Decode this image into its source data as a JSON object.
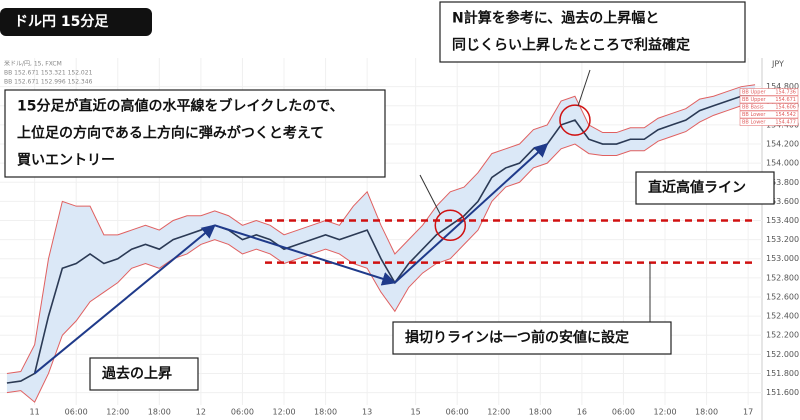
{
  "header": {
    "title": "ドル円 15分足"
  },
  "chart_data": {
    "type": "line",
    "currency": "JPY",
    "info_lines": [
      "米ドル/円, 15, FXCM",
      "BB 152.671 153.321 152.021",
      "BB 152.671 152.996 152.346"
    ],
    "x": [
      -4,
      -2,
      0,
      2,
      4,
      6,
      8,
      10,
      12,
      14,
      16,
      18,
      20,
      22,
      24,
      26,
      28,
      30,
      32,
      34,
      36,
      38,
      40,
      42,
      44,
      46,
      48,
      50,
      52,
      54,
      56,
      58,
      60,
      62,
      64,
      66,
      68,
      70,
      72,
      74,
      76,
      78,
      80,
      82,
      84,
      86,
      88,
      90,
      92,
      94,
      96,
      98,
      100,
      102,
      104
    ],
    "series": [
      {
        "name": "BB Upper",
        "color": "#e06060",
        "values": [
          151.8,
          151.82,
          152.1,
          153.0,
          153.6,
          153.55,
          153.55,
          153.25,
          153.25,
          153.3,
          153.35,
          153.3,
          153.4,
          153.45,
          153.45,
          153.5,
          153.45,
          153.35,
          153.4,
          153.35,
          153.25,
          153.3,
          153.35,
          153.4,
          153.35,
          153.55,
          153.7,
          153.35,
          153.05,
          153.2,
          153.35,
          153.55,
          153.7,
          153.75,
          153.9,
          154.1,
          154.15,
          154.2,
          154.35,
          154.4,
          154.65,
          154.7,
          154.4,
          154.32,
          154.32,
          154.37,
          154.37,
          154.47,
          154.52,
          154.57,
          154.67,
          154.7,
          154.75,
          154.8,
          154.82
        ]
      },
      {
        "name": "BB Lower",
        "color": "#e06060",
        "values": [
          151.6,
          151.62,
          151.5,
          151.8,
          152.2,
          152.35,
          152.55,
          152.65,
          152.75,
          152.9,
          152.95,
          152.9,
          153.0,
          153.05,
          153.15,
          153.2,
          153.15,
          153.05,
          153.1,
          153.05,
          152.95,
          153.0,
          153.05,
          153.1,
          153.05,
          152.95,
          152.9,
          152.65,
          152.45,
          152.7,
          152.85,
          152.95,
          153.0,
          153.15,
          153.3,
          153.6,
          153.75,
          153.8,
          153.95,
          154.0,
          154.15,
          154.2,
          154.1,
          154.08,
          154.08,
          154.13,
          154.13,
          154.23,
          154.28,
          154.33,
          154.43,
          154.5,
          154.55,
          154.6,
          154.62
        ]
      },
      {
        "name": "Price",
        "color": "#2b3a55",
        "values": [
          151.7,
          151.72,
          151.8,
          152.4,
          152.9,
          152.95,
          153.05,
          152.95,
          153.0,
          153.1,
          153.15,
          153.1,
          153.2,
          153.25,
          153.3,
          153.35,
          153.3,
          153.2,
          153.25,
          153.2,
          153.1,
          153.15,
          153.2,
          153.25,
          153.2,
          153.25,
          153.3,
          153.0,
          152.75,
          152.95,
          153.1,
          153.25,
          153.35,
          153.45,
          153.6,
          153.85,
          153.95,
          154.0,
          154.15,
          154.2,
          154.4,
          154.45,
          154.25,
          154.2,
          154.2,
          154.25,
          154.25,
          154.35,
          154.4,
          154.45,
          154.55,
          154.6,
          154.65,
          154.7,
          154.72
        ]
      }
    ],
    "band_color": "#dbe8f7",
    "xlim": [
      -5,
      105
    ],
    "ylim": [
      151.47,
      155.1
    ],
    "xticks": [
      {
        "value": 0,
        "label": "11"
      },
      {
        "value": 6,
        "label": "06:00"
      },
      {
        "value": 12,
        "label": "12:00"
      },
      {
        "value": 18,
        "label": "18:00"
      },
      {
        "value": 24,
        "label": "12"
      },
      {
        "value": 30,
        "label": "06:00"
      },
      {
        "value": 36,
        "label": "12:00"
      },
      {
        "value": 42,
        "label": "18:00"
      },
      {
        "value": 48,
        "label": "13"
      },
      {
        "value": 55,
        "label": "15"
      },
      {
        "value": 61,
        "label": "06:00"
      },
      {
        "value": 67,
        "label": "12:00"
      },
      {
        "value": 73,
        "label": "18:00"
      },
      {
        "value": 79,
        "label": "16"
      },
      {
        "value": 85,
        "label": "06:00"
      },
      {
        "value": 91,
        "label": "12:00"
      },
      {
        "value": 97,
        "label": "18:00"
      },
      {
        "value": 103,
        "label": "17"
      }
    ],
    "yticks": [
      {
        "value": 151.6,
        "label": "151.600"
      },
      {
        "value": 151.8,
        "label": "151.800"
      },
      {
        "value": 152.0,
        "label": "152.000"
      },
      {
        "value": 152.2,
        "label": "152.200"
      },
      {
        "value": 152.4,
        "label": "152.400"
      },
      {
        "value": 152.6,
        "label": "152.600"
      },
      {
        "value": 152.8,
        "label": "152.800"
      },
      {
        "value": 153.0,
        "label": "153.000"
      },
      {
        "value": 153.2,
        "label": "153.200"
      },
      {
        "value": 153.4,
        "label": "153.400"
      },
      {
        "value": 153.6,
        "label": "153.600"
      },
      {
        "value": 153.8,
        "label": "153.800"
      },
      {
        "value": 154.0,
        "label": "154.000"
      },
      {
        "value": 154.2,
        "label": "154.200"
      },
      {
        "value": 154.4,
        "label": "154.400"
      },
      {
        "value": 154.6,
        "label": "154.600"
      },
      {
        "value": 154.8,
        "label": "154.800"
      }
    ],
    "grid": true,
    "price_tags": [
      {
        "label": "BB Upper",
        "price": "154.736"
      },
      {
        "label": "BB Upper",
        "price": "154.671"
      },
      {
        "label": "BB Basis",
        "price": "154.606"
      },
      {
        "label": "BB Lower",
        "price": "154.542"
      },
      {
        "label": "BB Lower",
        "price": "154.477"
      }
    ],
    "hlines": [
      {
        "value": 153.4,
        "color": "#d01010"
      },
      {
        "value": 152.96,
        "color": "#d01010"
      }
    ],
    "annotations": [
      {
        "lines": [
          "N計算を参考に、過去の上昇幅と",
          "同じくらい上昇したところで利益確定"
        ]
      },
      {
        "lines": [
          "15分足が直近の高値の水平線をブレイクしたので、",
          "上位足の方向である上方向に弾みがつくと考えて",
          "買いエントリー"
        ]
      },
      {
        "lines": [
          "直近高値ライン"
        ]
      },
      {
        "lines": [
          "損切りラインは一つ前の安値に設定"
        ]
      },
      {
        "lines": [
          "過去の上昇"
        ]
      }
    ]
  }
}
